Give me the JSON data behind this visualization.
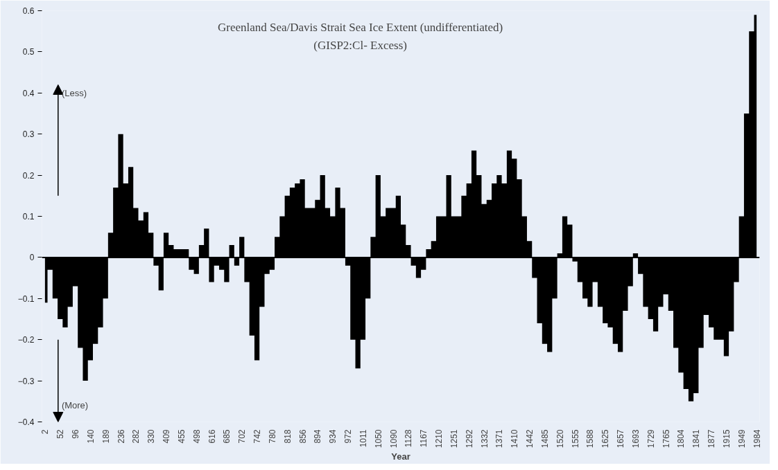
{
  "chart_data": {
    "type": "area",
    "title": "Greenland Sea/Davis Strait Sea Ice Extent (undifferentiated)",
    "subtitle": "(GISP2:Cl- Excess)",
    "xlabel": "Year",
    "annotations": [
      "(Less)",
      "(More)"
    ],
    "categories": [
      "2",
      null,
      null,
      "52",
      null,
      null,
      "96",
      null,
      null,
      "140",
      null,
      null,
      "189",
      null,
      null,
      "236",
      null,
      null,
      "282",
      null,
      null,
      "330",
      null,
      null,
      "409",
      null,
      null,
      "455",
      null,
      null,
      "498",
      null,
      null,
      "616",
      null,
      null,
      "685",
      null,
      null,
      "702",
      null,
      null,
      "742",
      null,
      null,
      "780",
      null,
      null,
      "818",
      null,
      null,
      "856",
      null,
      null,
      "894",
      null,
      null,
      "934",
      null,
      null,
      "972",
      null,
      null,
      "1011",
      null,
      null,
      "1050",
      null,
      null,
      "1090",
      null,
      null,
      "1128",
      null,
      null,
      "1167",
      null,
      null,
      "1210",
      null,
      null,
      "1251",
      null,
      null,
      "1292",
      null,
      null,
      "1332",
      null,
      null,
      "1371",
      null,
      null,
      "1410",
      null,
      null,
      "1442",
      null,
      null,
      "1485",
      null,
      null,
      "1520",
      null,
      null,
      "1555",
      null,
      null,
      "1588",
      null,
      null,
      "1625",
      null,
      null,
      "1657",
      null,
      null,
      "1693",
      null,
      null,
      "1729",
      null,
      null,
      "1765",
      null,
      null,
      "1804",
      null,
      null,
      "1841",
      null,
      null,
      "1877",
      null,
      null,
      "1915",
      null,
      null,
      "1949",
      null,
      null,
      "1984"
    ],
    "values": [
      -0.11,
      -0.03,
      -0.1,
      -0.15,
      -0.17,
      -0.12,
      -0.07,
      -0.22,
      -0.3,
      -0.25,
      -0.21,
      -0.17,
      -0.1,
      0.06,
      0.17,
      0.3,
      0.18,
      0.22,
      0.12,
      0.09,
      0.11,
      0.06,
      -0.02,
      -0.08,
      0.06,
      0.03,
      0.02,
      0.02,
      0.02,
      -0.03,
      -0.04,
      0.03,
      0.07,
      -0.06,
      -0.02,
      -0.03,
      -0.06,
      0.03,
      -0.02,
      0.05,
      -0.06,
      -0.19,
      -0.25,
      -0.12,
      -0.04,
      -0.03,
      0.05,
      0.1,
      0.15,
      0.17,
      0.18,
      0.19,
      0.12,
      0.12,
      0.14,
      0.2,
      0.12,
      0.1,
      0.17,
      0.12,
      -0.02,
      -0.2,
      -0.27,
      -0.2,
      -0.1,
      0.05,
      0.2,
      0.1,
      0.12,
      0.12,
      0.15,
      0.08,
      0.03,
      -0.02,
      -0.05,
      -0.03,
      0.02,
      0.04,
      0.1,
      0.1,
      0.2,
      0.1,
      0.1,
      0.15,
      0.18,
      0.26,
      0.2,
      0.13,
      0.14,
      0.18,
      0.2,
      0.18,
      0.26,
      0.24,
      0.19,
      0.1,
      0.04,
      -0.05,
      -0.16,
      -0.21,
      -0.23,
      -0.1,
      0.01,
      0.1,
      0.08,
      -0.01,
      -0.06,
      -0.1,
      -0.12,
      -0.06,
      -0.12,
      -0.16,
      -0.17,
      -0.21,
      -0.23,
      -0.13,
      -0.07,
      0.01,
      -0.04,
      -0.12,
      -0.15,
      -0.18,
      -0.12,
      -0.09,
      -0.13,
      -0.22,
      -0.28,
      -0.32,
      -0.35,
      -0.33,
      -0.22,
      -0.14,
      -0.17,
      -0.2,
      -0.2,
      -0.24,
      -0.18,
      -0.06,
      0.1,
      0.35,
      0.55,
      0.59
    ],
    "color": "#000000",
    "ylim": [
      -0.4,
      0.6
    ],
    "yticks": [
      -0.4,
      -0.3,
      -0.2,
      -0.1,
      0,
      0.1,
      0.2,
      0.3,
      0.4,
      0.5,
      0.6
    ]
  }
}
